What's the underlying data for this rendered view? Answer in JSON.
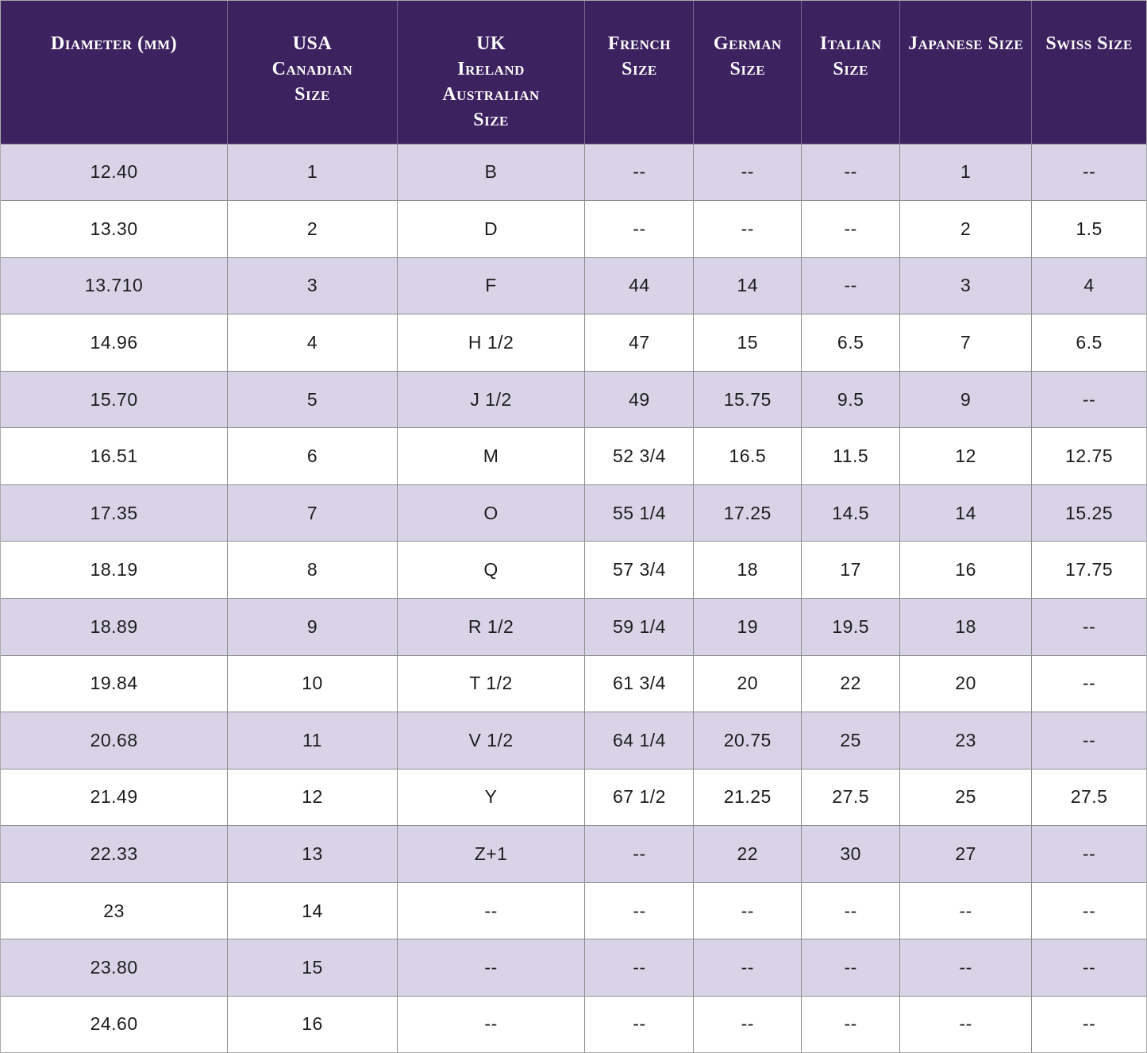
{
  "colors": {
    "header_background": "#3D2260",
    "header_text": "#FFFFFF",
    "row_alternate": "#D9D3E7",
    "row_default": "#FFFFFF",
    "border": "#8F8F8F",
    "cell_text": "#1C1C1C"
  },
  "chart_data": {
    "type": "table",
    "columns": [
      {
        "key": "diameter-mm",
        "label": "Diameter (mm)",
        "lines": [
          "Diameter (mm)"
        ]
      },
      {
        "key": "usa-canadian",
        "label": "USA Canadian Size",
        "lines": [
          "USA",
          "Canadian",
          "Size"
        ]
      },
      {
        "key": "uk-ireland-australian",
        "label": "UK Ireland Australian Size",
        "lines": [
          "UK",
          "Ireland",
          "Australian",
          "Size"
        ]
      },
      {
        "key": "french",
        "label": "French Size",
        "lines": [
          "French",
          "Size"
        ]
      },
      {
        "key": "german",
        "label": "German Size",
        "lines": [
          "German",
          "Size"
        ]
      },
      {
        "key": "italian",
        "label": "Italian Size",
        "lines": [
          "Italian",
          "Size"
        ]
      },
      {
        "key": "japanese",
        "label": "Japanese Size",
        "lines": [
          "Japanese Size"
        ]
      },
      {
        "key": "swiss",
        "label": "Swiss Size",
        "lines": [
          "Swiss Size"
        ]
      }
    ],
    "rows": [
      [
        "12.40",
        "1",
        "B",
        "--",
        "--",
        "--",
        "1",
        "--"
      ],
      [
        "13.30",
        "2",
        "D",
        "--",
        "--",
        "--",
        "2",
        "1.5"
      ],
      [
        "13.710",
        "3",
        "F",
        "44",
        "14",
        "--",
        "3",
        "4"
      ],
      [
        "14.96",
        "4",
        "H 1/2",
        "47",
        "15",
        "6.5",
        "7",
        "6.5"
      ],
      [
        "15.70",
        "5",
        "J 1/2",
        "49",
        "15.75",
        "9.5",
        "9",
        "--"
      ],
      [
        "16.51",
        "6",
        "M",
        "52 3/4",
        "16.5",
        "11.5",
        "12",
        "12.75"
      ],
      [
        "17.35",
        "7",
        "O",
        "55 1/4",
        "17.25",
        "14.5",
        "14",
        "15.25"
      ],
      [
        "18.19",
        "8",
        "Q",
        "57 3/4",
        "18",
        "17",
        "16",
        "17.75"
      ],
      [
        "18.89",
        "9",
        "R 1/2",
        "59 1/4",
        "19",
        "19.5",
        "18",
        "--"
      ],
      [
        "19.84",
        "10",
        "T 1/2",
        "61 3/4",
        "20",
        "22",
        "20",
        "--"
      ],
      [
        "20.68",
        "11",
        "V 1/2",
        "64 1/4",
        "20.75",
        "25",
        "23",
        "--"
      ],
      [
        "21.49",
        "12",
        "Y",
        "67 1/2",
        "21.25",
        "27.5",
        "25",
        "27.5"
      ],
      [
        "22.33",
        "13",
        "Z+1",
        "--",
        "22",
        "30",
        "27",
        "--"
      ],
      [
        "23",
        "14",
        "--",
        "--",
        "--",
        "--",
        "--",
        "--"
      ],
      [
        "23.80",
        "15",
        "--",
        "--",
        "--",
        "--",
        "--",
        "--"
      ],
      [
        "24.60",
        "16",
        "--",
        "--",
        "--",
        "--",
        "--",
        "--"
      ]
    ]
  }
}
